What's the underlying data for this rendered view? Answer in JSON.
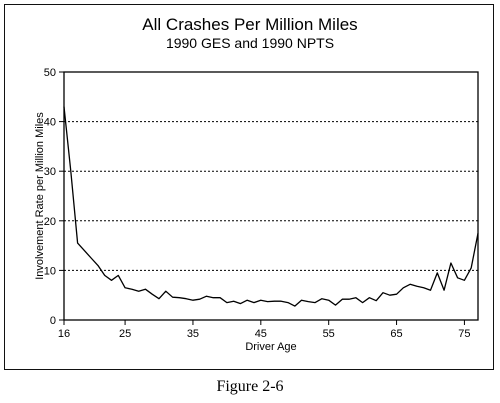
{
  "chart_data": {
    "type": "line",
    "title": "All Crashes Per Million Miles",
    "subtitle": "1990 GES and 1990 NPTS",
    "xlabel": "Driver Age",
    "ylabel": "Involvement Rate per Million Miles",
    "xlim": [
      16,
      77
    ],
    "ylim": [
      0,
      50
    ],
    "x_ticks": [
      16,
      25,
      35,
      45,
      55,
      65,
      75
    ],
    "y_ticks": [
      0,
      10,
      20,
      30,
      40,
      50
    ],
    "grid": "horizontal dotted at 10, 20, 30, 40",
    "series": [
      {
        "x": [
          16,
          17,
          18,
          19,
          20,
          21,
          22,
          23,
          24,
          25,
          26,
          27,
          28,
          29,
          30,
          31,
          32,
          33,
          34,
          35,
          36,
          37,
          38,
          39,
          40,
          41,
          42,
          43,
          44,
          45,
          46,
          47,
          48,
          49,
          50,
          51,
          52,
          53,
          54,
          55,
          56,
          57,
          58,
          59,
          60,
          61,
          62,
          63,
          64,
          65,
          66,
          67,
          68,
          69,
          70,
          71,
          72,
          73,
          74,
          75,
          76,
          77
        ],
        "y": [
          43,
          30,
          15.5,
          14,
          12.5,
          11,
          9,
          8,
          9,
          6.5,
          6.2,
          5.8,
          6.2,
          5.2,
          4.3,
          5.8,
          4.6,
          4.5,
          4.3,
          4.0,
          4.2,
          4.8,
          4.5,
          4.5,
          3.5,
          3.8,
          3.3,
          4.0,
          3.5,
          4.0,
          3.7,
          3.8,
          3.8,
          3.5,
          2.8,
          4.0,
          3.7,
          3.5,
          4.3,
          4.0,
          3.0,
          4.2,
          4.2,
          4.5,
          3.5,
          4.5,
          3.9,
          5.5,
          5.0,
          5.2,
          6.5,
          7.2,
          6.8,
          6.5,
          6.0,
          9.5,
          6.0,
          11.5,
          8.5,
          8.0,
          10.5,
          17.5
        ]
      }
    ]
  },
  "caption": "Figure 2-6"
}
